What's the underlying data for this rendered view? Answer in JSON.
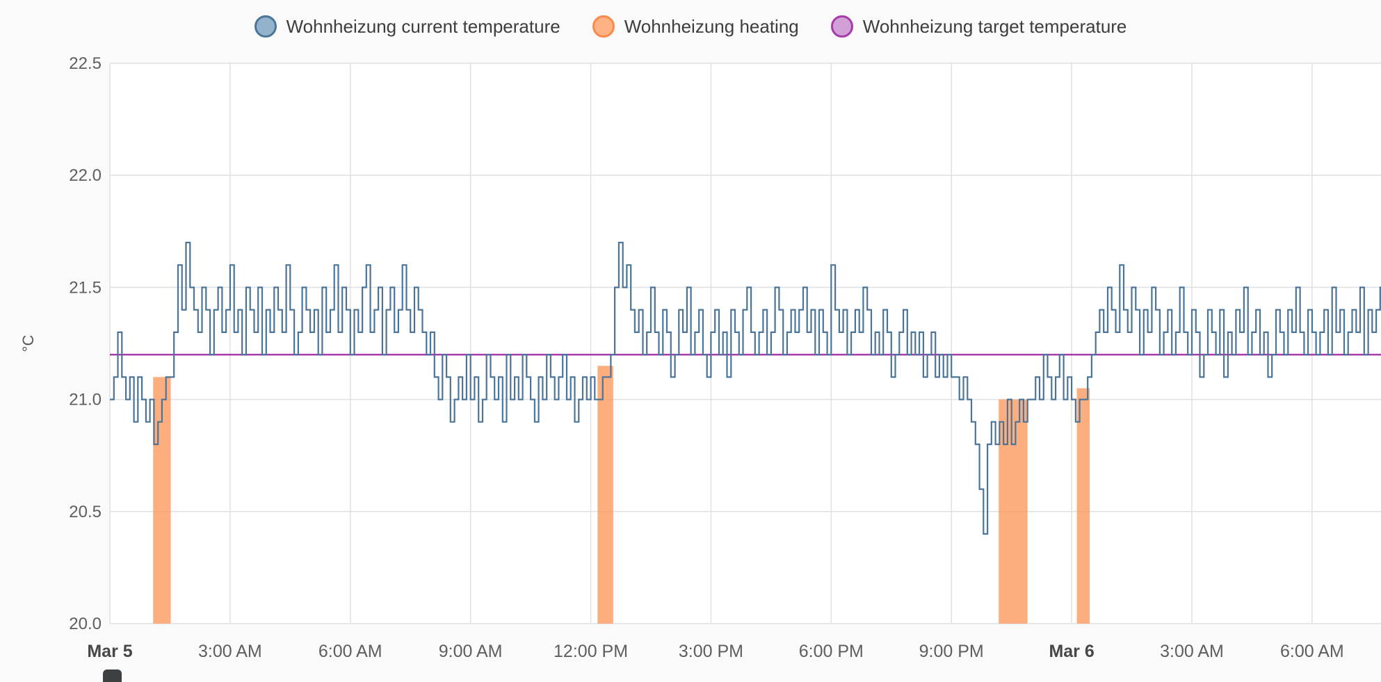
{
  "legend": {
    "items": [
      {
        "label": "Wohnheizung current temperature",
        "color": "#4a7599",
        "fill": "#93b2cb"
      },
      {
        "label": "Wohnheizung heating",
        "color": "#f98a4c",
        "fill": "#ffb183"
      },
      {
        "label": "Wohnheizung target temperature",
        "color": "#a83aaa",
        "fill": "#d1a0d6"
      }
    ]
  },
  "chart_data": {
    "type": "line",
    "title": "",
    "ylabel": "°C",
    "legend_position": "top",
    "grid": true,
    "grid_color": "#e0e0e0",
    "y_min": 20.0,
    "y_max": 22.5,
    "y_tick_step": 0.5,
    "y_tick_labels": [
      "20.0",
      "20.5",
      "21.0",
      "21.5",
      "22.0",
      "22.5"
    ],
    "x_unit": "hours since Mar 5 12:00 AM",
    "x_min": 0,
    "x_max": 31.72,
    "x_ticks": [
      {
        "t": 0,
        "label": "Mar 5",
        "bold": true
      },
      {
        "t": 3,
        "label": "3:00 AM"
      },
      {
        "t": 6,
        "label": "6:00 AM"
      },
      {
        "t": 9,
        "label": "9:00 AM"
      },
      {
        "t": 12,
        "label": "12:00 PM"
      },
      {
        "t": 15,
        "label": "3:00 PM"
      },
      {
        "t": 18,
        "label": "6:00 PM"
      },
      {
        "t": 21,
        "label": "9:00 PM"
      },
      {
        "t": 24,
        "label": "Mar 6",
        "bold": true
      },
      {
        "t": 27,
        "label": "3:00 AM"
      },
      {
        "t": 30,
        "label": "6:00 AM"
      }
    ],
    "series": [
      {
        "name": "Wohnheizung current temperature",
        "type": "step-line",
        "color": "#4a7599",
        "start_hours": 0,
        "step_hours": 0.1,
        "values": [
          21.0,
          21.1,
          21.3,
          21.1,
          21.0,
          21.1,
          20.9,
          21.1,
          21.0,
          20.9,
          21.0,
          20.8,
          20.9,
          21.0,
          21.1,
          21.1,
          21.3,
          21.6,
          21.4,
          21.7,
          21.5,
          21.4,
          21.3,
          21.5,
          21.4,
          21.2,
          21.4,
          21.5,
          21.3,
          21.4,
          21.6,
          21.3,
          21.4,
          21.2,
          21.5,
          21.4,
          21.3,
          21.5,
          21.2,
          21.4,
          21.3,
          21.5,
          21.4,
          21.3,
          21.6,
          21.4,
          21.2,
          21.3,
          21.5,
          21.4,
          21.3,
          21.4,
          21.2,
          21.5,
          21.3,
          21.4,
          21.6,
          21.3,
          21.5,
          21.4,
          21.2,
          21.4,
          21.3,
          21.5,
          21.6,
          21.3,
          21.4,
          21.5,
          21.2,
          21.4,
          21.5,
          21.3,
          21.4,
          21.6,
          21.4,
          21.3,
          21.5,
          21.4,
          21.3,
          21.2,
          21.3,
          21.1,
          21.0,
          21.2,
          21.1,
          20.9,
          21.0,
          21.1,
          21.0,
          21.2,
          21.0,
          21.1,
          20.9,
          21.0,
          21.2,
          21.1,
          21.0,
          21.1,
          20.9,
          21.2,
          21.0,
          21.1,
          21.0,
          21.2,
          21.1,
          21.0,
          20.9,
          21.1,
          21.0,
          21.2,
          21.1,
          21.0,
          21.1,
          21.2,
          21.0,
          21.1,
          20.9,
          21.0,
          21.1,
          21.0,
          21.1,
          21.0,
          21.0,
          21.1,
          21.1,
          21.2,
          21.5,
          21.7,
          21.5,
          21.6,
          21.4,
          21.3,
          21.4,
          21.2,
          21.3,
          21.5,
          21.3,
          21.2,
          21.4,
          21.3,
          21.1,
          21.2,
          21.4,
          21.3,
          21.5,
          21.2,
          21.3,
          21.4,
          21.2,
          21.1,
          21.3,
          21.4,
          21.2,
          21.3,
          21.1,
          21.4,
          21.3,
          21.2,
          21.4,
          21.5,
          21.3,
          21.2,
          21.3,
          21.4,
          21.2,
          21.3,
          21.5,
          21.4,
          21.2,
          21.3,
          21.4,
          21.3,
          21.4,
          21.5,
          21.3,
          21.4,
          21.2,
          21.4,
          21.3,
          21.2,
          21.6,
          21.4,
          21.3,
          21.4,
          21.2,
          21.3,
          21.4,
          21.3,
          21.5,
          21.4,
          21.2,
          21.3,
          21.2,
          21.4,
          21.3,
          21.1,
          21.2,
          21.3,
          21.4,
          21.2,
          21.3,
          21.2,
          21.3,
          21.1,
          21.2,
          21.3,
          21.1,
          21.2,
          21.1,
          21.2,
          21.1,
          21.1,
          21.0,
          21.1,
          21.0,
          20.9,
          20.8,
          20.6,
          20.4,
          20.8,
          20.9,
          20.8,
          20.9,
          20.8,
          21.0,
          20.8,
          20.9,
          21.0,
          20.9,
          21.0,
          21.0,
          21.1,
          21.0,
          21.2,
          21.1,
          21.0,
          21.1,
          21.2,
          21.0,
          21.1,
          21.0,
          20.9,
          21.0,
          21.0,
          21.1,
          21.2,
          21.3,
          21.4,
          21.3,
          21.5,
          21.4,
          21.3,
          21.6,
          21.4,
          21.3,
          21.5,
          21.4,
          21.2,
          21.4,
          21.3,
          21.5,
          21.4,
          21.2,
          21.3,
          21.4,
          21.2,
          21.3,
          21.5,
          21.3,
          21.2,
          21.4,
          21.3,
          21.1,
          21.2,
          21.4,
          21.3,
          21.2,
          21.4,
          21.1,
          21.3,
          21.2,
          21.4,
          21.3,
          21.5,
          21.2,
          21.3,
          21.4,
          21.2,
          21.3,
          21.1,
          21.2,
          21.4,
          21.3,
          21.2,
          21.4,
          21.3,
          21.5,
          21.3,
          21.2,
          21.4,
          21.3,
          21.2,
          21.3,
          21.4,
          21.2,
          21.5,
          21.3,
          21.4,
          21.2,
          21.3,
          21.4,
          21.3,
          21.5,
          21.2,
          21.4,
          21.3,
          21.4,
          21.5
        ]
      },
      {
        "name": "Wohnheizung heating",
        "type": "bars",
        "color": "#fc9a5f",
        "opacity": 0.8,
        "intervals": [
          {
            "start": 1.08,
            "end": 1.52,
            "top": 21.1
          },
          {
            "start": 12.17,
            "end": 12.56,
            "top": 21.15
          },
          {
            "start": 22.18,
            "end": 22.9,
            "top": 21.0
          },
          {
            "start": 24.13,
            "end": 24.45,
            "top": 21.05
          }
        ]
      },
      {
        "name": "Wohnheizung target temperature",
        "type": "line",
        "color": "#a83aaa",
        "value": 21.2
      }
    ]
  }
}
